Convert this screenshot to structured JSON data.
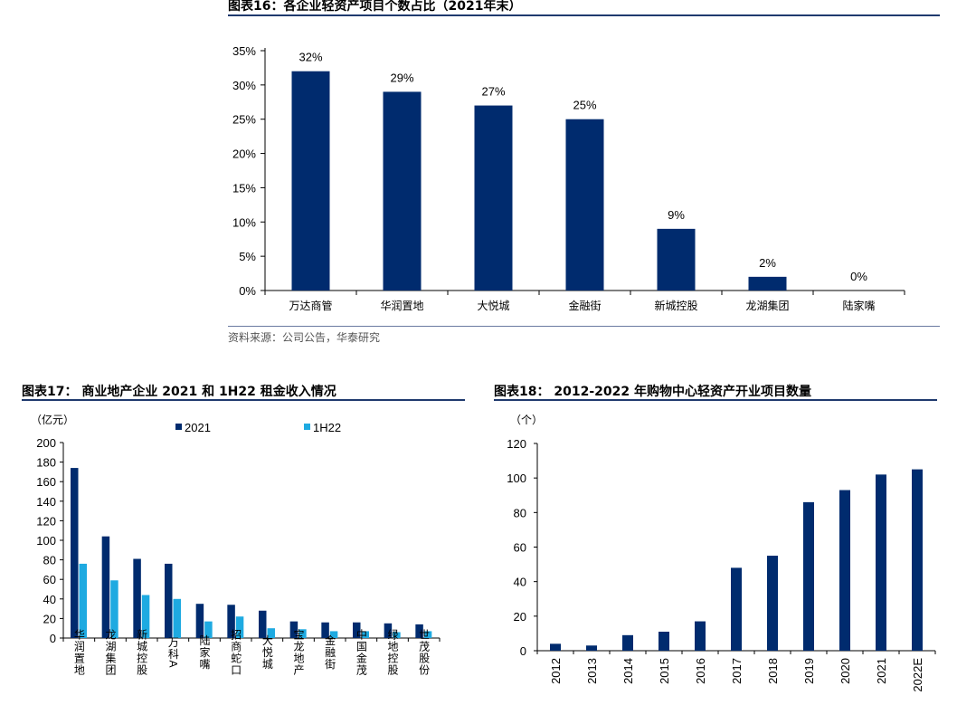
{
  "chart_data": [
    {
      "type": "bar",
      "title": "图表16：各企业轻资产项目个数占比（2021年末）",
      "categories": [
        "万达商管",
        "华润置地",
        "大悦城",
        "金融街",
        "新城控股",
        "龙湖集团",
        "陆家嘴"
      ],
      "values": [
        32,
        29,
        27,
        25,
        9,
        2,
        0
      ],
      "data_labels": [
        "32%",
        "29%",
        "27%",
        "25%",
        "9%",
        "2%",
        "0%"
      ],
      "yticks": [
        "0%",
        "5%",
        "10%",
        "15%",
        "20%",
        "25%",
        "30%",
        "35%"
      ],
      "ylim": [
        0,
        35
      ],
      "color": "#002b6e",
      "source": "资料来源：公司公告，华泰研究"
    },
    {
      "type": "bar",
      "title": "图表17：  商业地产企业 2021 和 1H22 租金收入情况",
      "unit": "（亿元）",
      "categories": [
        "华润置地",
        "龙湖集团",
        "新城控股",
        "万科A",
        "陆家嘴",
        "招商蛇口",
        "大悦城",
        "宝龙地产",
        "金融街",
        "中国金茂",
        "绿地控股",
        "世茂股份"
      ],
      "series": [
        {
          "name": "2021",
          "color": "#002b6e",
          "values": [
            174,
            104,
            81,
            76,
            35,
            34,
            28,
            17,
            16,
            16,
            15,
            14
          ]
        },
        {
          "name": "1H22",
          "color": "#1eaae1",
          "values": [
            76,
            59,
            44,
            40,
            17,
            22,
            10,
            9,
            7,
            7,
            6,
            7
          ]
        }
      ],
      "yticks": [
        "0",
        "20",
        "40",
        "60",
        "80",
        "100",
        "120",
        "140",
        "160",
        "180",
        "200"
      ],
      "ylim": [
        0,
        200
      ]
    },
    {
      "type": "bar",
      "title": "图表18：  2012-2022 年购物中心轻资产开业项目数量",
      "unit": "（个）",
      "categories": [
        "2012",
        "2013",
        "2014",
        "2015",
        "2016",
        "2017",
        "2018",
        "2019",
        "2020",
        "2021",
        "2022E"
      ],
      "values": [
        4,
        3,
        9,
        11,
        17,
        48,
        55,
        86,
        93,
        102,
        105
      ],
      "yticks": [
        "0",
        "20",
        "40",
        "60",
        "80",
        "100",
        "120"
      ],
      "ylim": [
        0,
        120
      ],
      "color": "#002b6e"
    }
  ]
}
